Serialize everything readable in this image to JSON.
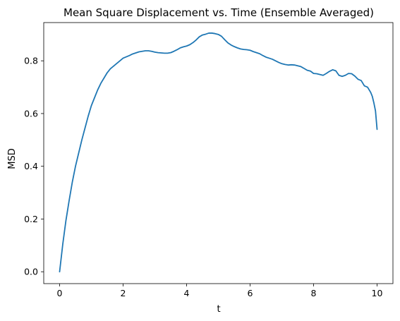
{
  "chart_data": {
    "type": "line",
    "title": "Mean Square Displacement vs. Time (Ensemble Averaged)",
    "xlabel": "t",
    "ylabel": "MSD",
    "xlim": [
      -0.5,
      10.5
    ],
    "ylim": [
      -0.045,
      0.945
    ],
    "xticks": [
      0,
      2,
      4,
      6,
      8,
      10
    ],
    "xtick_labels": [
      "0",
      "2",
      "4",
      "6",
      "8",
      "10"
    ],
    "yticks": [
      0.0,
      0.2,
      0.4,
      0.6,
      0.8
    ],
    "ytick_labels": [
      "0.0",
      "0.2",
      "0.4",
      "0.6",
      "0.8"
    ],
    "grid": false,
    "legend": "none",
    "series": [
      {
        "color": "#1f77b4",
        "x": [
          0,
          0.1,
          0.2,
          0.3,
          0.4,
          0.5,
          0.6,
          0.7,
          0.8,
          0.9,
          1.0,
          1.1,
          1.2,
          1.3,
          1.4,
          1.5,
          1.6,
          1.7,
          1.8,
          1.9,
          2.0,
          2.1,
          2.2,
          2.3,
          2.4,
          2.5,
          2.6,
          2.7,
          2.8,
          2.9,
          3.0,
          3.1,
          3.2,
          3.3,
          3.4,
          3.5,
          3.6,
          3.7,
          3.8,
          3.9,
          4.0,
          4.1,
          4.2,
          4.3,
          4.4,
          4.5,
          4.6,
          4.7,
          4.8,
          4.9,
          5.0,
          5.1,
          5.2,
          5.3,
          5.4,
          5.5,
          5.6,
          5.7,
          5.8,
          5.9,
          6.0,
          6.1,
          6.2,
          6.3,
          6.4,
          6.5,
          6.6,
          6.7,
          6.8,
          6.9,
          7.0,
          7.1,
          7.2,
          7.3,
          7.4,
          7.5,
          7.6,
          7.7,
          7.8,
          7.9,
          8.0,
          8.1,
          8.2,
          8.3,
          8.4,
          8.5,
          8.6,
          8.7,
          8.8,
          8.9,
          9.0,
          9.1,
          9.2,
          9.3,
          9.4,
          9.5,
          9.6,
          9.7,
          9.8,
          9.85,
          9.9,
          9.95,
          10.0
        ],
        "y": [
          0.0,
          0.105,
          0.195,
          0.27,
          0.34,
          0.4,
          0.45,
          0.5,
          0.545,
          0.59,
          0.63,
          0.66,
          0.69,
          0.715,
          0.735,
          0.755,
          0.77,
          0.78,
          0.79,
          0.8,
          0.81,
          0.815,
          0.82,
          0.826,
          0.83,
          0.834,
          0.836,
          0.838,
          0.838,
          0.836,
          0.833,
          0.831,
          0.83,
          0.829,
          0.829,
          0.831,
          0.836,
          0.842,
          0.849,
          0.853,
          0.856,
          0.861,
          0.869,
          0.879,
          0.891,
          0.898,
          0.901,
          0.905,
          0.905,
          0.903,
          0.9,
          0.893,
          0.88,
          0.868,
          0.86,
          0.854,
          0.849,
          0.845,
          0.843,
          0.842,
          0.84,
          0.835,
          0.831,
          0.827,
          0.82,
          0.814,
          0.81,
          0.806,
          0.8,
          0.794,
          0.789,
          0.786,
          0.784,
          0.785,
          0.784,
          0.781,
          0.778,
          0.771,
          0.764,
          0.761,
          0.752,
          0.751,
          0.748,
          0.745,
          0.752,
          0.76,
          0.766,
          0.762,
          0.745,
          0.741,
          0.745,
          0.752,
          0.751,
          0.742,
          0.73,
          0.725,
          0.705,
          0.7,
          0.68,
          0.665,
          0.64,
          0.61,
          0.54
        ]
      }
    ]
  }
}
